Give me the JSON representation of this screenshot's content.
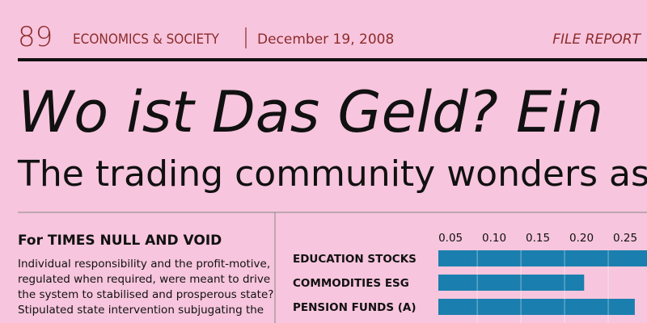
{
  "header": {
    "issue": "89",
    "section": "ECONOMICS & SOCIETY",
    "date": "December 19, 2008",
    "label": "FILE REPORT"
  },
  "headline": "Wo ist Das Geld? Ein",
  "subheadline": "The trading community wonders as stock m",
  "article": {
    "byline": "For TIMES NULL AND VOID",
    "lines": [
      "Individual responsibility and the profit-motive,",
      "regulated when required, were meant to drive",
      "the system to stabilised and prosperous state?",
      "Stipulated state intervention subjugating the"
    ]
  },
  "chart_data": {
    "type": "bar",
    "orientation": "horizontal",
    "categories": [
      "EDUCATION STOCKS",
      "COMMODITIES ESG",
      "PENSION FUNDS (A)"
    ],
    "values": [
      0.28,
      0.203,
      0.261
    ],
    "color": "#1a7fae",
    "xlim": [
      0.036,
      0.3
    ],
    "xticks": [
      0.05,
      {
        "value": 0.1,
        "label": "0.10"
      },
      0.15,
      {
        "value": 0.2,
        "label": "0.20"
      },
      0.25
    ],
    "grid": true
  }
}
